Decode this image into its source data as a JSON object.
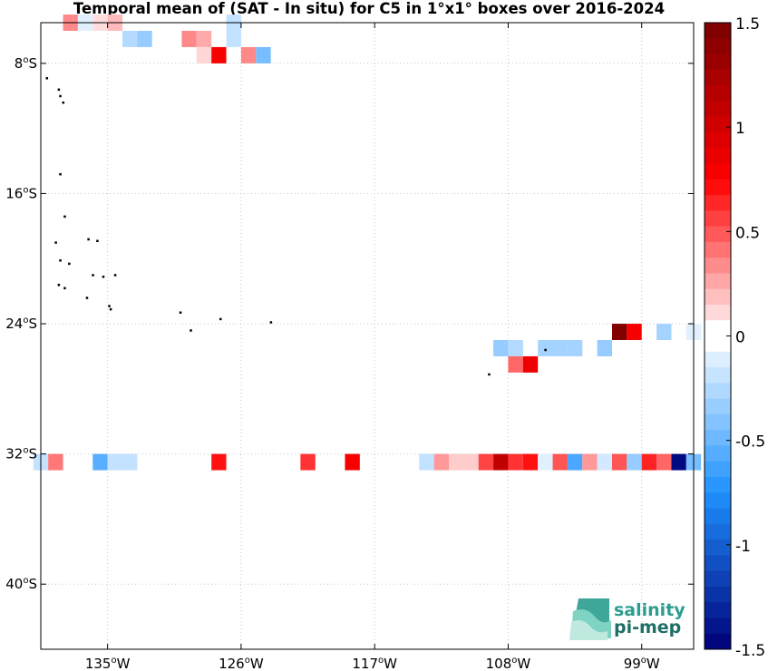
{
  "chart_data": {
    "type": "heatmap",
    "title": "Temporal mean of (SAT - In situ) for C5 in 1°x1° boxes over 2016-2024",
    "lon_range": [
      -139.5,
      -95.5
    ],
    "lat_range": [
      -44,
      -5.5
    ],
    "grid": true,
    "x_ticks": [
      {
        "value": -135,
        "label": "135",
        "sup": "o",
        "hem": "W"
      },
      {
        "value": -126,
        "label": "126",
        "sup": "o",
        "hem": "W"
      },
      {
        "value": -117,
        "label": "117",
        "sup": "o",
        "hem": "W"
      },
      {
        "value": -108,
        "label": "108",
        "sup": "o",
        "hem": "W"
      },
      {
        "value": -99,
        "label": "99",
        "sup": "o",
        "hem": "W"
      }
    ],
    "y_ticks": [
      {
        "value": -8,
        "label": "8",
        "sup": "o",
        "hem": "S"
      },
      {
        "value": -16,
        "label": "16",
        "sup": "o",
        "hem": "S"
      },
      {
        "value": -24,
        "label": "24",
        "sup": "o",
        "hem": "S"
      },
      {
        "value": -32,
        "label": "32",
        "sup": "o",
        "hem": "S"
      },
      {
        "value": -40,
        "label": "40",
        "sup": "o",
        "hem": "S"
      }
    ],
    "colorbar": {
      "range": [
        -1.5,
        1.5
      ],
      "levels": 40,
      "ticks": [
        {
          "value": 1.5,
          "label": "1.5"
        },
        {
          "value": 1,
          "label": "1"
        },
        {
          "value": 0.5,
          "label": "0.5"
        },
        {
          "value": 0,
          "label": "0"
        },
        {
          "value": -0.5,
          "label": "-0.5"
        },
        {
          "value": -1,
          "label": "-1"
        },
        {
          "value": -1.5,
          "label": "-1.5"
        }
      ]
    },
    "cells": [
      {
        "lon": -137.5,
        "lat": -5.5,
        "value": 0.35
      },
      {
        "lon": -136.5,
        "lat": -5.5,
        "value": -0.1
      },
      {
        "lon": -135.5,
        "lat": -5.5,
        "value": 0.1
      },
      {
        "lon": -134.5,
        "lat": -5.5,
        "value": 0.2
      },
      {
        "lon": -126.5,
        "lat": -5.5,
        "value": -0.2
      },
      {
        "lon": -126.5,
        "lat": -6.5,
        "value": -0.2
      },
      {
        "lon": -133.5,
        "lat": -6.5,
        "value": -0.25
      },
      {
        "lon": -132.5,
        "lat": -6.5,
        "value": -0.35
      },
      {
        "lon": -129.5,
        "lat": -6.5,
        "value": 0.35
      },
      {
        "lon": -128.5,
        "lat": -6.5,
        "value": 0.25
      },
      {
        "lon": -128.5,
        "lat": -7.5,
        "value": 0.12
      },
      {
        "lon": -127.5,
        "lat": -7.5,
        "value": 0.8
      },
      {
        "lon": -125.5,
        "lat": -7.5,
        "value": 0.35
      },
      {
        "lon": -124.5,
        "lat": -7.5,
        "value": -0.45
      },
      {
        "lon": -100.5,
        "lat": -24.5,
        "value": 1.45
      },
      {
        "lon": -99.5,
        "lat": -24.5,
        "value": 0.8
      },
      {
        "lon": -97.5,
        "lat": -24.5,
        "value": -0.3
      },
      {
        "lon": -95.5,
        "lat": -24.5,
        "value": -0.1
      },
      {
        "lon": -108.5,
        "lat": -25.5,
        "value": -0.35
      },
      {
        "lon": -107.5,
        "lat": -25.5,
        "value": -0.25
      },
      {
        "lon": -105.5,
        "lat": -25.5,
        "value": -0.3
      },
      {
        "lon": -104.5,
        "lat": -25.5,
        "value": -0.3
      },
      {
        "lon": -103.5,
        "lat": -25.5,
        "value": -0.3
      },
      {
        "lon": -101.5,
        "lat": -25.5,
        "value": -0.35
      },
      {
        "lon": -107.5,
        "lat": -26.5,
        "value": 0.45
      },
      {
        "lon": -106.5,
        "lat": -26.5,
        "value": 0.85
      },
      {
        "lon": -139.5,
        "lat": -32.5,
        "value": -0.2
      },
      {
        "lon": -138.5,
        "lat": -32.5,
        "value": 0.4
      },
      {
        "lon": -135.5,
        "lat": -32.5,
        "value": -0.55
      },
      {
        "lon": -134.5,
        "lat": -32.5,
        "value": -0.2
      },
      {
        "lon": -133.5,
        "lat": -32.5,
        "value": -0.2
      },
      {
        "lon": -127.5,
        "lat": -32.5,
        "value": 0.7
      },
      {
        "lon": -121.5,
        "lat": -32.5,
        "value": 0.6
      },
      {
        "lon": -118.5,
        "lat": -32.5,
        "value": 0.8
      },
      {
        "lon": -113.5,
        "lat": -32.5,
        "value": -0.2
      },
      {
        "lon": -112.5,
        "lat": -32.5,
        "value": 0.3
      },
      {
        "lon": -111.5,
        "lat": -32.5,
        "value": 0.15
      },
      {
        "lon": -110.5,
        "lat": -32.5,
        "value": 0.15
      },
      {
        "lon": -109.5,
        "lat": -32.5,
        "value": 0.55
      },
      {
        "lon": -108.5,
        "lat": -32.5,
        "value": 1.1
      },
      {
        "lon": -107.5,
        "lat": -32.5,
        "value": 0.6
      },
      {
        "lon": -106.5,
        "lat": -32.5,
        "value": 0.7
      },
      {
        "lon": -105.5,
        "lat": -32.5,
        "value": -0.1
      },
      {
        "lon": -104.5,
        "lat": -32.5,
        "value": 0.5
      },
      {
        "lon": -103.5,
        "lat": -32.5,
        "value": -0.6
      },
      {
        "lon": -102.5,
        "lat": -32.5,
        "value": 0.3
      },
      {
        "lon": -101.5,
        "lat": -32.5,
        "value": -0.15
      },
      {
        "lon": -100.5,
        "lat": -32.5,
        "value": 0.5
      },
      {
        "lon": -99.5,
        "lat": -32.5,
        "value": -0.35
      },
      {
        "lon": -98.5,
        "lat": -32.5,
        "value": 0.65
      },
      {
        "lon": -97.5,
        "lat": -32.5,
        "value": 0.45
      },
      {
        "lon": -96.5,
        "lat": -32.5,
        "value": -1.45
      },
      {
        "lon": -95.5,
        "lat": -32.5,
        "value": -0.45
      }
    ]
  },
  "logo": {
    "line1": "salinity",
    "line2": "pi-mep"
  }
}
